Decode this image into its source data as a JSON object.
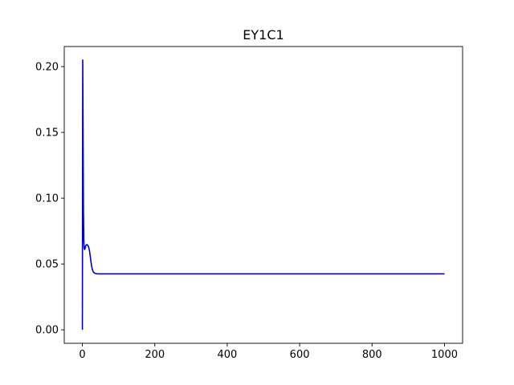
{
  "chart_data": {
    "type": "line",
    "title": "EY1C1",
    "xlabel": "",
    "ylabel": "",
    "xlim": [
      -50,
      1050
    ],
    "ylim": [
      -0.01025,
      0.21525
    ],
    "grid": false,
    "x_ticks": [
      0,
      200,
      400,
      600,
      800,
      1000
    ],
    "x_tick_labels": [
      "0",
      "200",
      "400",
      "600",
      "800",
      "1000"
    ],
    "y_ticks": [
      0.0,
      0.05,
      0.1,
      0.15,
      0.2
    ],
    "y_tick_labels": [
      "0.00",
      "0.05",
      "0.10",
      "0.15",
      "0.20"
    ],
    "series": [
      {
        "color": "#0000cc",
        "x": [
          0,
          1,
          2,
          3,
          4,
          5,
          6,
          7,
          8,
          9,
          10,
          12,
          14,
          16,
          18,
          20,
          22,
          24,
          26,
          28,
          30,
          33,
          36,
          40,
          45,
          50,
          60,
          80,
          100,
          150,
          200,
          300,
          400,
          500,
          600,
          700,
          800,
          900,
          1000
        ],
        "y": [
          0.0,
          0.205,
          0.15,
          0.09,
          0.068,
          0.062,
          0.061,
          0.0615,
          0.0625,
          0.0635,
          0.0642,
          0.0647,
          0.0645,
          0.0638,
          0.0622,
          0.0595,
          0.0555,
          0.0512,
          0.0478,
          0.0455,
          0.0441,
          0.0432,
          0.0428,
          0.0426,
          0.0425,
          0.0425,
          0.0425,
          0.0425,
          0.0425,
          0.0425,
          0.0425,
          0.0425,
          0.0425,
          0.0425,
          0.0425,
          0.0425,
          0.0425,
          0.0425,
          0.0425
        ]
      }
    ]
  }
}
